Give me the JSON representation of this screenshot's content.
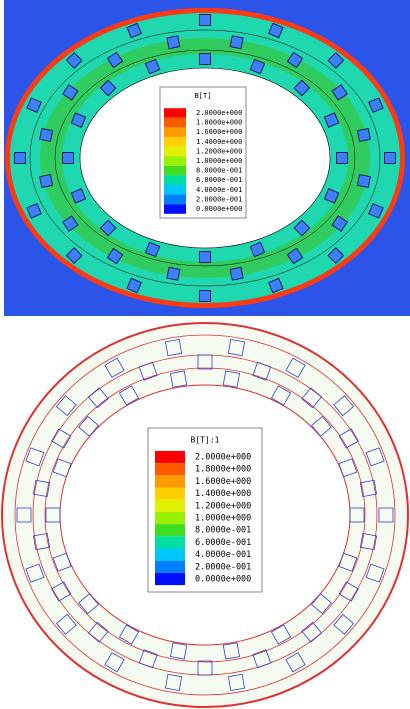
{
  "panels": [
    {
      "legend_title": "B[T]",
      "legend_labels": [
        "2.0000e+000",
        "1.8000e+000",
        "1.6000e+000",
        "1.4000e+000",
        "1.2000e+000",
        "1.0000e+000",
        "8.0000e-001",
        "6.0000e-001",
        "4.0000e-001",
        "2.0000e-001",
        "0.0000e+000"
      ],
      "legend_colors": [
        "#ff0000",
        "#ff5a00",
        "#ff9a00",
        "#ffd000",
        "#e0f000",
        "#9af000",
        "#40dd20",
        "#00e0a0",
        "#00c8ff",
        "#0080ff",
        "#0010ff"
      ]
    },
    {
      "legend_title": "B[T]:1",
      "legend_labels": [
        "2.0000e+000",
        "1.8000e+000",
        "1.6000e+000",
        "1.4000e+000",
        "1.2000e+000",
        "1.0000e+000",
        "8.0000e-001",
        "6.0000e-001",
        "4.0000e-001",
        "2.0000e-001",
        "0.0000e+000"
      ],
      "legend_colors": [
        "#ff0000",
        "#ff5a00",
        "#ff9a00",
        "#ffd000",
        "#e0f000",
        "#9af000",
        "#40dd20",
        "#00e0a0",
        "#00c8ff",
        "#0080ff",
        "#0010ff"
      ]
    }
  ]
}
